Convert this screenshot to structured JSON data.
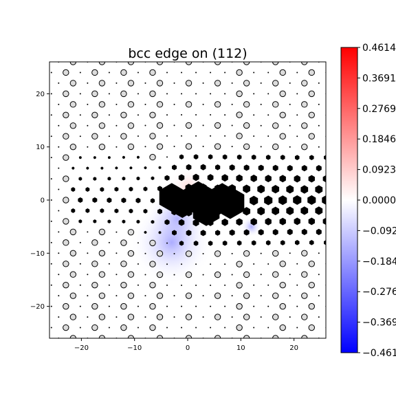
{
  "chart_data": {
    "type": "scatter",
    "title": "bcc edge on (112)",
    "xlabel": "",
    "ylabel": "",
    "xlim": [
      -26,
      26
    ],
    "ylim": [
      -26,
      26
    ],
    "x_ticks": [
      -20,
      -10,
      0,
      10,
      20
    ],
    "y_ticks": [
      -20,
      -10,
      0,
      10,
      20
    ],
    "grid": false,
    "colorbar": {
      "cmap": "bwr",
      "min": -0.4614,
      "max": 0.4614,
      "tick_labels": [
        "0.4614",
        "0.3691",
        "0.2769",
        "0.1846",
        "0.0923",
        "0.0000",
        "-0.092",
        "-0.184",
        "-0.276",
        "-0.369",
        "-0.461"
      ],
      "tick_values": [
        0.4614,
        0.3691,
        0.2769,
        0.1846,
        0.0923,
        0.0,
        -0.0923,
        -0.1846,
        -0.2769,
        -0.3691,
        -0.4614
      ]
    },
    "lattice": {
      "row_spacing": 2.0,
      "col_spacing": 2.72,
      "row_shift": 1.36
    },
    "dislocation": {
      "core": [
        2,
        0
      ],
      "distorted_atoms": [
        {
          "x": -3,
          "y": 0.5,
          "size": 3.0
        },
        {
          "x": -1,
          "y": -1.2,
          "size": 2.4
        },
        {
          "x": 2,
          "y": 0.3,
          "size": 3.6
        },
        {
          "x": 3.5,
          "y": -2,
          "size": 3.2
        },
        {
          "x": 6.5,
          "y": 0.5,
          "size": 3.0
        },
        {
          "x": 8,
          "y": -0.5,
          "size": 3.4
        }
      ],
      "strain_field": [
        {
          "x": 0,
          "y": 2.5,
          "value": 0.06
        },
        {
          "x": -2,
          "y": -3.5,
          "value": -0.09
        },
        {
          "x": -3,
          "y": -8,
          "value": -0.12
        },
        {
          "x": 12,
          "y": -5,
          "value": -0.03
        }
      ]
    }
  }
}
